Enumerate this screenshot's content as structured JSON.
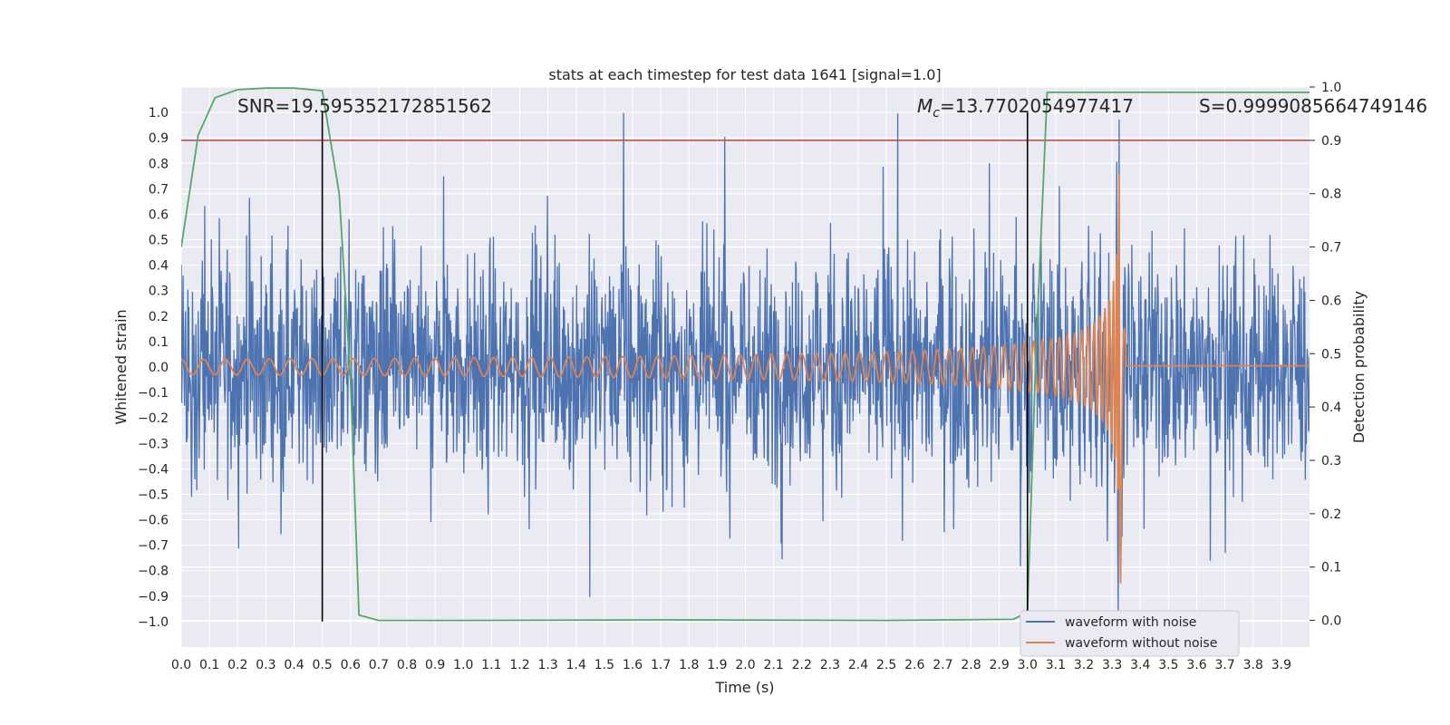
{
  "chart_data": {
    "type": "line",
    "title": "stats at each timestep for test data 1641 [signal=1.0]",
    "xlabel": "Time (s)",
    "ylabel": "Whitened strain",
    "y2label": "Detection probability",
    "xlim": [
      0.0,
      4.0
    ],
    "ylim": [
      -1.1,
      1.1
    ],
    "y2lim": [
      -0.05,
      1.0
    ],
    "grid": true,
    "x_ticks": [
      "0.0",
      "0.1",
      "0.2",
      "0.3",
      "0.4",
      "0.5",
      "0.6",
      "0.7",
      "0.8",
      "0.9",
      "1.0",
      "1.1",
      "1.2",
      "1.3",
      "1.4",
      "1.5",
      "1.6",
      "1.7",
      "1.8",
      "1.9",
      "2.0",
      "2.1",
      "2.2",
      "2.3",
      "2.4",
      "2.5",
      "2.6",
      "2.7",
      "2.8",
      "2.9",
      "3.0",
      "3.1",
      "3.2",
      "3.3",
      "3.4",
      "3.5",
      "3.6",
      "3.7",
      "3.8",
      "3.9"
    ],
    "y_ticks": [
      "1.0",
      "0.9",
      "0.8",
      "0.7",
      "0.6",
      "0.5",
      "0.4",
      "0.3",
      "0.2",
      "0.1",
      "0.0",
      "-0.1",
      "-0.2",
      "-0.3",
      "-0.4",
      "-0.5",
      "-0.6",
      "-0.7",
      "-0.8",
      "-0.9",
      "-1.0"
    ],
    "y2_ticks": [
      "1.0",
      "0.9",
      "0.8",
      "0.7",
      "0.6",
      "0.5",
      "0.4",
      "0.3",
      "0.2",
      "0.1",
      "0.0"
    ],
    "annotations": {
      "snr": "SNR=19.595352172851562",
      "mc_symbol": "M",
      "mc_sub": "c",
      "mc_value": "=13.7702054977417",
      "s": "S=0.9999085664749146"
    },
    "threshold": {
      "axis": "y2",
      "value": 0.9,
      "color": "#c44e52"
    },
    "vertical_markers": [
      {
        "x": 0.5,
        "y_from": -1.0,
        "y_to": 1.0,
        "color": "#000000"
      },
      {
        "x": 3.0,
        "y_from": -1.0,
        "y_to": 1.0,
        "color": "#000000"
      }
    ],
    "series": [
      {
        "name": "waveform with noise",
        "color": "#4c72b0",
        "description": "whitened strain, noise-dominated, amplitude mostly within ±0.7 with spikes to ±0.9"
      },
      {
        "name": "waveform without noise",
        "color": "#dd8452",
        "description": "chirp signal: amplitude ~0.03 at t=0 growing to ~0.9 at merger t≈3.33 s, ~0.005 after"
      },
      {
        "name": "detection probability",
        "color": "#55a868",
        "axis": "y2",
        "x": [
          0.0,
          0.06,
          0.12,
          0.2,
          0.3,
          0.4,
          0.5,
          0.56,
          0.6,
          0.63,
          0.7,
          1.0,
          1.7,
          2.5,
          2.95,
          2.98,
          3.0,
          3.03,
          3.07,
          3.2,
          3.5,
          4.0
        ],
        "values": [
          0.7,
          0.91,
          0.98,
          0.995,
          0.998,
          0.998,
          0.993,
          0.8,
          0.45,
          0.01,
          0.0,
          0.0,
          0.001,
          0.0,
          0.002,
          0.01,
          0.02,
          0.5,
          0.99,
          0.99,
          0.99,
          0.99
        ]
      }
    ],
    "legend": {
      "position": "lower-right",
      "entries": [
        {
          "label": "waveform with noise",
          "color": "#4c72b0"
        },
        {
          "label": "waveform without noise",
          "color": "#dd8452"
        }
      ]
    },
    "colors": {
      "plot_bg": "#eaeaf2",
      "grid": "#ffffff"
    }
  }
}
